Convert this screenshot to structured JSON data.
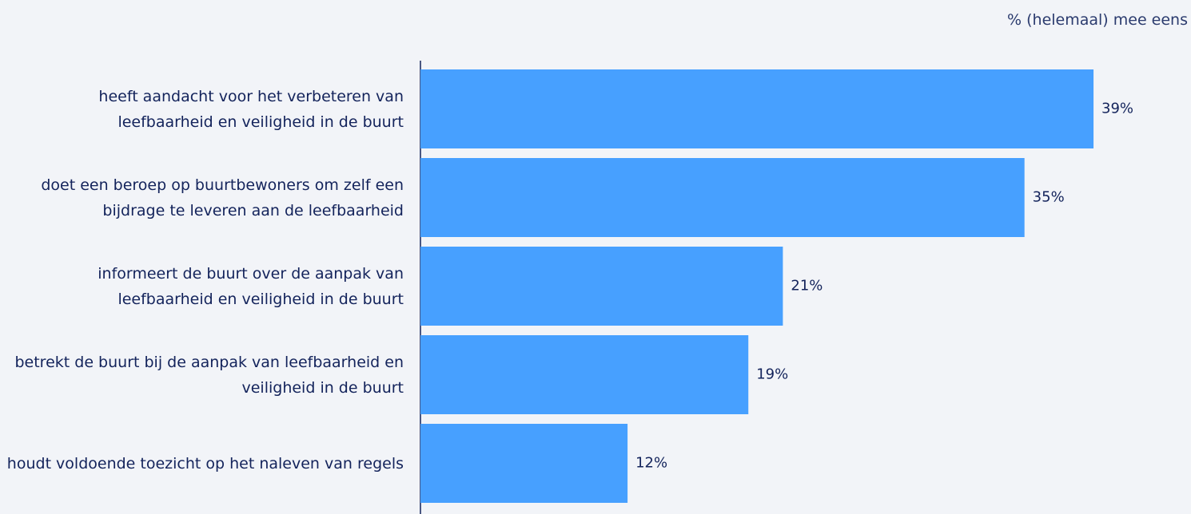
{
  "chart_data": {
    "type": "barh",
    "axis_label": "% (helemaal) mee eens",
    "categories": [
      "heeft aandacht voor het verbeteren van leefbaarheid en veiligheid in de buurt",
      "doet een beroep op buurtbewoners om zelf een bijdrage te leveren aan de leefbaarheid",
      "informeert de buurt over de aanpak van leefbaarheid en veiligheid in de buurt",
      "betrekt de buurt bij de aanpak van leefbaarheid en veiligheid in de buurt",
      "houdt voldoende toezicht op het naleven van regels"
    ],
    "values": [
      39,
      35,
      21,
      19,
      12
    ],
    "value_labels": [
      "39%",
      "35%",
      "21%",
      "19%",
      "12%"
    ],
    "color": "#47a0ff",
    "xlim": [
      0,
      44
    ]
  }
}
